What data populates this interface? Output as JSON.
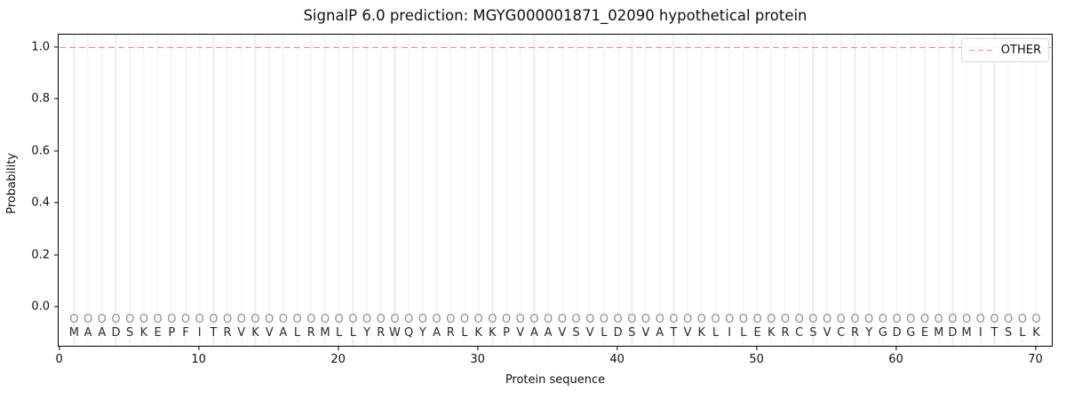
{
  "figure": {
    "title": "SignalP 6.0 prediction: MGYG000001871_02090 hypothetical protein",
    "background_color": "#ffffff"
  },
  "chart_data": {
    "type": "line",
    "title": "SignalP 6.0 prediction: MGYG000001871_02090 hypothetical protein",
    "xlabel": "Protein sequence",
    "ylabel": "Probability",
    "xlim": [
      0,
      71.3
    ],
    "ylim": [
      -0.155,
      1.05
    ],
    "x_ticks": [
      0,
      10,
      20,
      30,
      40,
      50,
      60,
      70
    ],
    "y_ticks": [
      "0.0",
      "0.2",
      "0.4",
      "0.6",
      "0.8",
      "1.0"
    ],
    "grid": {
      "vertical_gridline_per_residue": true,
      "color": "#ededed",
      "horizontal": false
    },
    "legend": {
      "position": "upper right",
      "items": [
        {
          "label": "OTHER",
          "color": "#f4827b",
          "linestyle": "dashed"
        }
      ]
    },
    "series": [
      {
        "name": "OTHER",
        "linestyle": "dashed",
        "color": "#f4827b",
        "x_start": 1,
        "x_end": 70,
        "n_points": 70,
        "constant_y": 1.0
      }
    ],
    "sequence": "MAADSKEPFITRVKVALRMLLYRWQYARLKKPVAAVSVLDSVATVKLILEKRCSVCRYGDGEMDMITSLK",
    "sequence_length": 70,
    "residue_markers": {
      "glyph": "O",
      "color": "#8f8f8f",
      "y": -0.05
    }
  }
}
